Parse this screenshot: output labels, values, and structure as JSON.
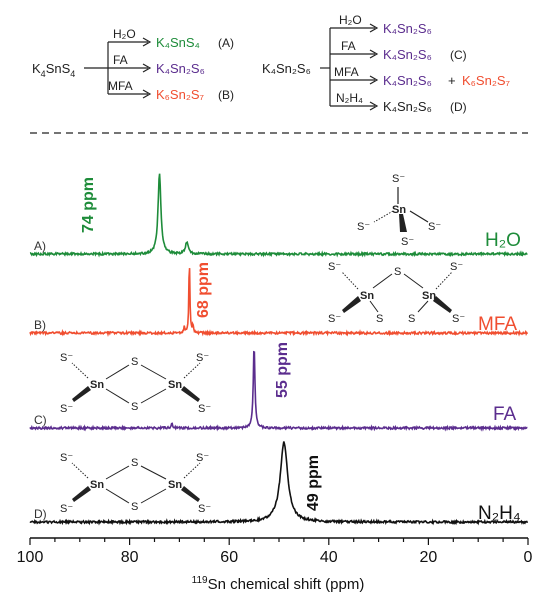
{
  "scheme": {
    "left": {
      "reactant": {
        "main": "K",
        "sub1": "4",
        "mid": "SnS",
        "sub2": "4"
      },
      "branches": [
        {
          "solvent": "H₂O",
          "product": "K₄SnS₄",
          "tag": "(A)",
          "color": "#1e8c3a"
        },
        {
          "solvent": "FA",
          "product": "K₄Sn₂S₆",
          "tag": "",
          "color": "#5b2d8e"
        },
        {
          "solvent": "MFA",
          "product": "K₆Sn₂S₇",
          "tag": "(B)",
          "color": "#f04e30"
        }
      ]
    },
    "right": {
      "reactant": "K₄Sn₂S₆",
      "branches": [
        {
          "solvent": "H₂O",
          "product": "K₄Sn₂S₆",
          "tag": "",
          "color": "#5b2d8e"
        },
        {
          "solvent": "FA",
          "product": "K₄Sn₂S₆",
          "tag": "(C)",
          "color": "#5b2d8e"
        },
        {
          "solvent": "MFA",
          "product": "K₄Sn₂S₆",
          "plus": "+",
          "product2": "K₆Sn₂S₇",
          "color": "#5b2d8e",
          "color2": "#f04e30"
        },
        {
          "solvent": "N₂H₄",
          "product": "K₄Sn₂S₆",
          "tag": "(D)",
          "color": "#222222"
        }
      ]
    }
  },
  "structure_labels": {
    "sn": "Sn",
    "s": "S",
    "s_minus": "S⁻"
  },
  "chart_data": {
    "type": "line",
    "title": "",
    "xlabel_super": "119",
    "xlabel": "Sn chemical shift (ppm)",
    "xlim": [
      100,
      0
    ],
    "xticks": [
      100,
      80,
      60,
      40,
      20,
      0
    ],
    "x_reversed": true,
    "grid": false,
    "series": [
      {
        "name": "A)",
        "solvent": "H₂O",
        "color": "#1e8c3a",
        "peaks": [
          {
            "ppm": 74,
            "height": 1.0,
            "width": 0.35
          },
          {
            "ppm": 68.5,
            "height": 0.15,
            "width": 0.35
          }
        ],
        "annotation": "74 ppm"
      },
      {
        "name": "B)",
        "solvent": "MFA",
        "color": "#f04e30",
        "peaks": [
          {
            "ppm": 68,
            "height": 1.0,
            "width": 0.12
          },
          {
            "ppm": 67.3,
            "height": 0.12,
            "width": 0.12
          },
          {
            "ppm": 69,
            "height": 0.08,
            "width": 0.12
          }
        ],
        "annotation": "68 ppm"
      },
      {
        "name": "C)",
        "solvent": "FA",
        "color": "#5b2d8e",
        "peaks": [
          {
            "ppm": 55,
            "height": 1.0,
            "width": 0.2
          },
          {
            "ppm": 71.5,
            "height": 0.05,
            "width": 0.2
          }
        ],
        "annotation": "55 ppm"
      },
      {
        "name": "D)",
        "solvent": "N₂H₄",
        "color": "#111111",
        "peaks": [
          {
            "ppm": 49,
            "height": 1.0,
            "width": 0.9
          }
        ],
        "annotation": "49 ppm"
      }
    ]
  }
}
